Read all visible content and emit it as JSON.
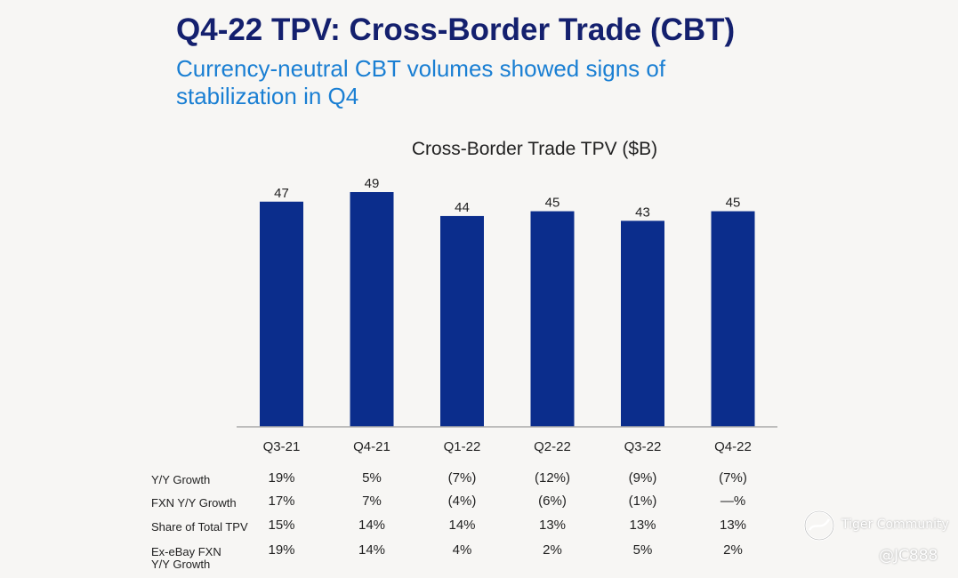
{
  "page": {
    "title": "Q4-22 TPV: Cross-Border Trade (CBT)",
    "subtitle": "Currency-neutral CBT volumes showed signs of stabilization in Q4"
  },
  "colors": {
    "bar": "#0b2d8c",
    "title": "#14206e",
    "subtitle": "#1a7fd3",
    "axis": "#aaaaaa"
  },
  "chart_data": {
    "type": "bar",
    "title": "Cross-Border Trade TPV ($B)",
    "categories": [
      "Q3-21",
      "Q4-21",
      "Q1-22",
      "Q2-22",
      "Q3-22",
      "Q4-22"
    ],
    "values": [
      47,
      49,
      44,
      45,
      43,
      45
    ],
    "ylim": [
      0,
      49
    ],
    "xlabel": "",
    "ylabel": "",
    "grid": false,
    "table": [
      {
        "label": [
          "Y/Y Growth"
        ],
        "values": [
          "19%",
          "5%",
          "(7%)",
          "(12%)",
          "(9%)",
          "(7%)"
        ]
      },
      {
        "label": [
          "FXN Y/Y Growth"
        ],
        "values": [
          "17%",
          "7%",
          "(4%)",
          "(6%)",
          "(1%)",
          "—%"
        ]
      },
      {
        "label": [
          "Share of Total TPV"
        ],
        "values": [
          "15%",
          "14%",
          "14%",
          "13%",
          "13%",
          "13%"
        ]
      },
      {
        "label": [
          "Ex-eBay FXN",
          "Y/Y Growth"
        ],
        "values": [
          "19%",
          "14%",
          "4%",
          "2%",
          "5%",
          "2%"
        ]
      }
    ]
  },
  "watermark": {
    "brand": "Tiger Community",
    "handle": "@JC888"
  }
}
